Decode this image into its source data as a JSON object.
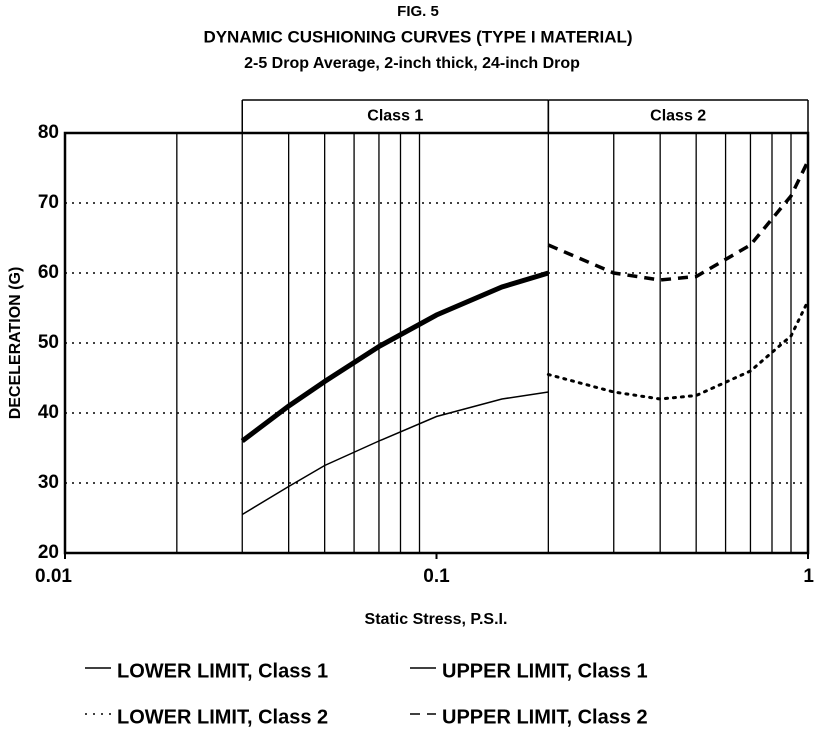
{
  "chart_data": {
    "type": "line",
    "title": "FIG. 5",
    "subtitle": "DYNAMIC CUSHIONING CURVES (TYPE I MATERIAL)",
    "note": "2-5 Drop Average, 2-inch thick, 24-inch Drop",
    "x_label": "Static Stress, P.S.I.",
    "y_label": "DECELERATION (G)",
    "x_log": true,
    "xlim": [
      0.01,
      1
    ],
    "xticks": [
      0.01,
      0.1,
      1
    ],
    "xgrid": [
      0.02,
      0.03,
      0.04,
      0.05,
      0.06,
      0.07,
      0.08,
      0.09,
      0.2,
      0.3,
      0.4,
      0.5,
      0.6,
      0.7,
      0.8,
      0.9
    ],
    "ylim": [
      20,
      80
    ],
    "yticks": [
      20,
      30,
      40,
      50,
      60,
      70,
      80
    ],
    "grid": true,
    "bands": [
      {
        "label": "Class 1",
        "range": [
          0.03,
          0.2
        ]
      },
      {
        "label": "Class 2",
        "range": [
          0.2,
          1
        ]
      }
    ],
    "series": [
      {
        "name": "LOWER LIMIT, Class 1",
        "color": "#000000",
        "dash": "solid",
        "width": 1.5,
        "x": [
          0.03,
          0.04,
          0.05,
          0.07,
          0.1,
          0.15,
          0.2
        ],
        "values": [
          25.5,
          29.5,
          32.5,
          36,
          39.5,
          42,
          43
        ]
      },
      {
        "name": "UPPER LIMIT, Class 1",
        "color": "#000000",
        "dash": "solid",
        "width": 5,
        "x": [
          0.03,
          0.04,
          0.05,
          0.07,
          0.1,
          0.15,
          0.2
        ],
        "values": [
          36,
          41,
          44.5,
          49.5,
          54,
          58,
          60
        ]
      },
      {
        "name": "LOWER LIMIT, Class 2",
        "color": "#000000",
        "dash": "dotted",
        "width": 3,
        "x": [
          0.2,
          0.3,
          0.4,
          0.5,
          0.7,
          0.9,
          1
        ],
        "values": [
          45.5,
          43,
          42,
          42.5,
          46,
          51,
          56
        ]
      },
      {
        "name": "UPPER LIMIT, Class 2",
        "color": "#000000",
        "dash": "dashed",
        "width": 3.5,
        "x": [
          0.2,
          0.3,
          0.4,
          0.5,
          0.7,
          0.9,
          1
        ],
        "values": [
          64,
          60,
          59,
          59.5,
          64,
          71,
          76
        ]
      }
    ]
  }
}
